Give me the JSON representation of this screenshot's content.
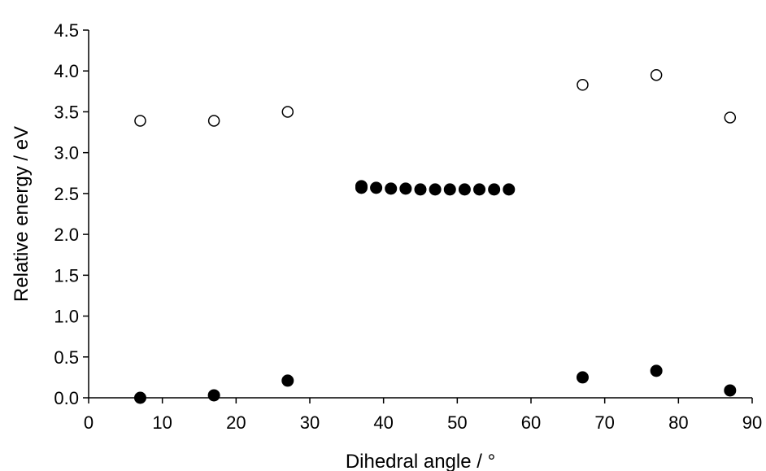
{
  "chart_data": {
    "type": "scatter",
    "title": "",
    "xlabel": "Dihedral angle / °",
    "ylabel": "Relative energy / eV",
    "xlim": [
      0,
      90
    ],
    "ylim": [
      0,
      4.5
    ],
    "x_ticks": [
      0,
      10,
      20,
      30,
      40,
      50,
      60,
      70,
      80,
      90
    ],
    "x_tick_labels": [
      "0",
      "10",
      "20",
      "30",
      "40",
      "50",
      "60",
      "70",
      "80",
      "90"
    ],
    "y_ticks": [
      0.0,
      0.5,
      1.0,
      1.5,
      2.0,
      2.5,
      3.0,
      3.5,
      4.0,
      4.5
    ],
    "y_tick_labels": [
      "0.0",
      "0.5",
      "1.0",
      "1.5",
      "2.0",
      "2.5",
      "3.0",
      "3.5",
      "4.0",
      "4.5"
    ],
    "grid": false,
    "legend": "none",
    "series": [
      {
        "marker": "open-circle",
        "color": "#000000",
        "points": [
          {
            "x": 7,
            "y": 3.39
          },
          {
            "x": 17,
            "y": 3.39
          },
          {
            "x": 27,
            "y": 3.5
          },
          {
            "x": 67,
            "y": 3.83
          },
          {
            "x": 77,
            "y": 3.95
          },
          {
            "x": 87,
            "y": 3.43
          }
        ]
      },
      {
        "marker": "filled-circle",
        "color": "#000000",
        "points": [
          {
            "x": 7,
            "y": 0.0
          },
          {
            "x": 17,
            "y": 0.03
          },
          {
            "x": 27,
            "y": 0.21
          },
          {
            "x": 37,
            "y": 2.59
          },
          {
            "x": 37,
            "y": 2.57
          },
          {
            "x": 39,
            "y": 2.57
          },
          {
            "x": 41,
            "y": 2.56
          },
          {
            "x": 43,
            "y": 2.56
          },
          {
            "x": 45,
            "y": 2.55
          },
          {
            "x": 47,
            "y": 2.55
          },
          {
            "x": 49,
            "y": 2.55
          },
          {
            "x": 51,
            "y": 2.55
          },
          {
            "x": 53,
            "y": 2.55
          },
          {
            "x": 55,
            "y": 2.55
          },
          {
            "x": 57,
            "y": 2.55
          },
          {
            "x": 67,
            "y": 0.25
          },
          {
            "x": 77,
            "y": 0.33
          },
          {
            "x": 87,
            "y": 0.09
          }
        ]
      }
    ]
  }
}
